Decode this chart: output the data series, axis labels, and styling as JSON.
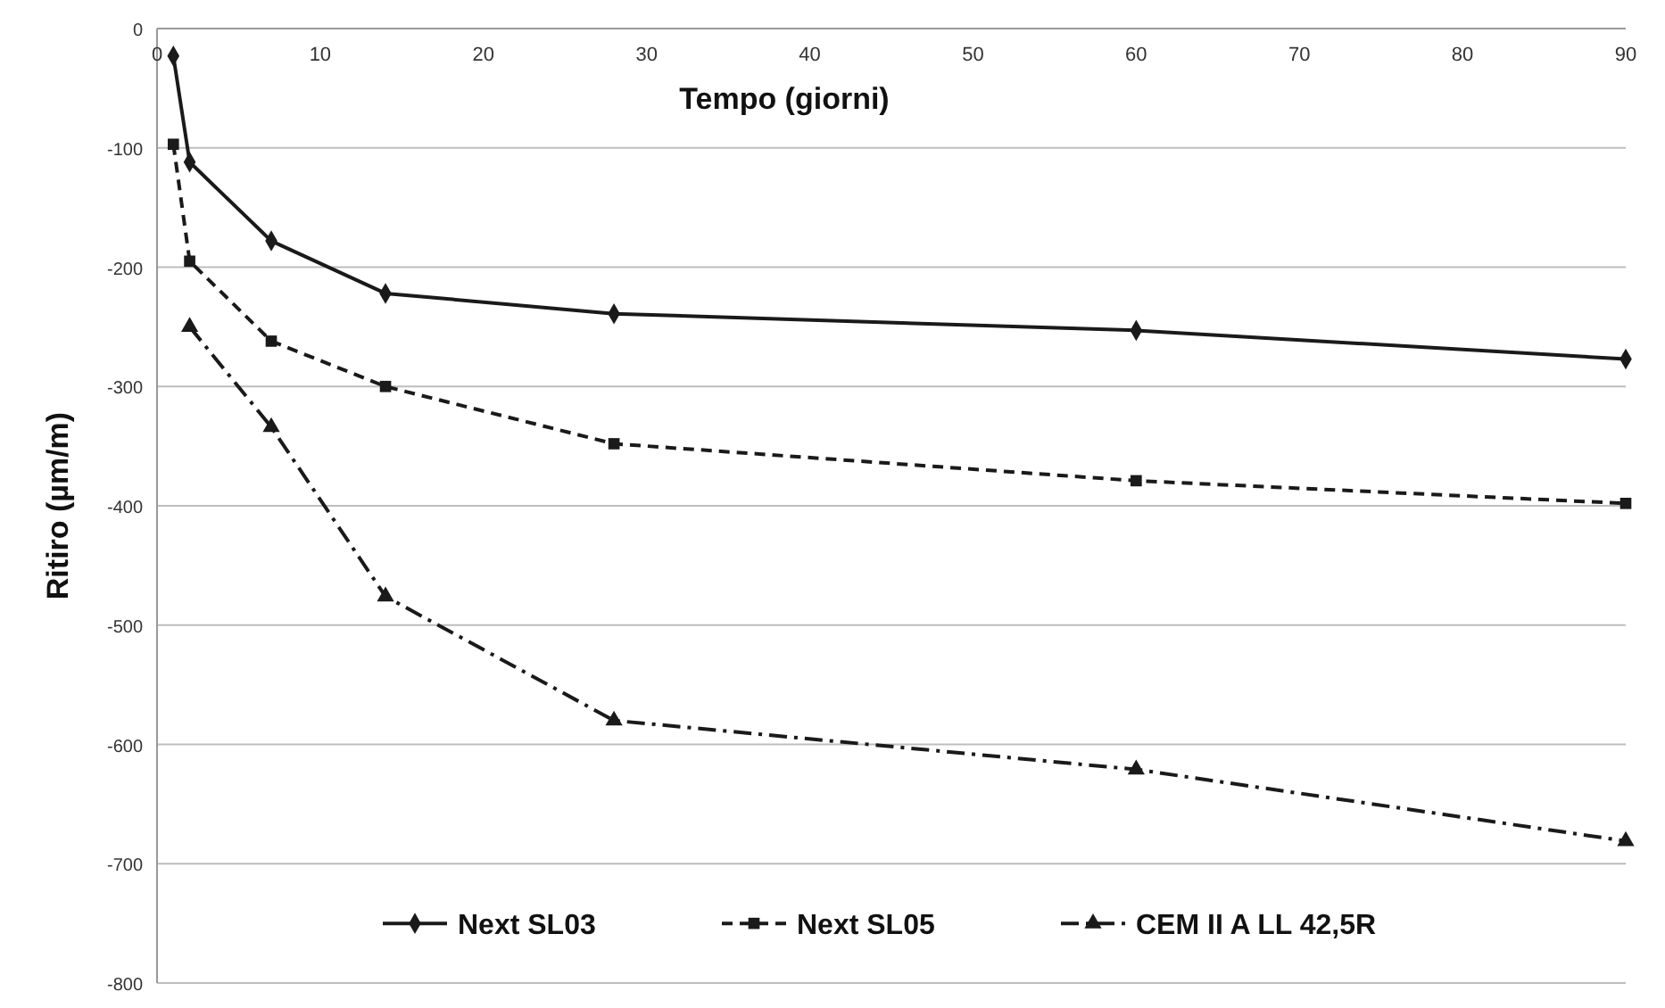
{
  "chart_data": {
    "type": "line",
    "xlabel": "Tempo (giorni)",
    "ylabel": "Ritiro (µm/m)",
    "xlim": [
      0,
      90
    ],
    "xticks": [
      0,
      10,
      20,
      30,
      40,
      50,
      60,
      70,
      80,
      90
    ],
    "ylim": [
      -800,
      0
    ],
    "yticks": [
      0,
      -100,
      -200,
      -300,
      -400,
      -500,
      -600,
      -700,
      -800
    ],
    "grid": "y",
    "legend": "bottom",
    "series": [
      {
        "name": "Next SL03",
        "color": "#1a1a1a",
        "line_style": "solid",
        "marker": "diamond",
        "x": [
          1,
          2,
          7,
          14,
          28,
          60,
          90
        ],
        "values": [
          -23,
          -112,
          -178,
          -222,
          -239,
          -253,
          -277
        ]
      },
      {
        "name": "Next SL05",
        "color": "#1a1a1a",
        "line_style": "dashed",
        "marker": "square",
        "x": [
          1,
          2,
          7,
          14,
          28,
          60,
          90
        ],
        "values": [
          -97,
          -195,
          -262,
          -300,
          -348,
          -379,
          -398
        ]
      },
      {
        "name": "CEM II A LL 42,5R",
        "color": "#1a1a1a",
        "line_style": "dashdot",
        "marker": "triangle",
        "x": [
          2,
          7,
          14,
          28,
          60,
          90
        ],
        "values": [
          -250,
          -334,
          -476,
          -580,
          -621,
          -681
        ]
      }
    ]
  }
}
